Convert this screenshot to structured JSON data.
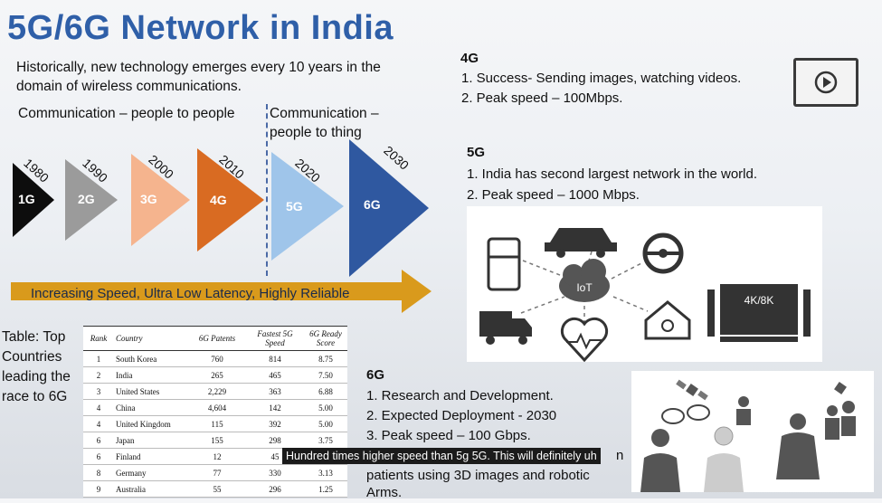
{
  "title": "5G/6G Network in India",
  "intro": "Historically, new technology emerges every 10 years in the domain of wireless communications.",
  "comm_people": "Communication – people to people",
  "comm_thing": "Communication – people to thing",
  "generations": [
    {
      "label": "1G",
      "year": "1980",
      "color": "#0d0d0d"
    },
    {
      "label": "2G",
      "year": "1990",
      "color": "#9b9b9b"
    },
    {
      "label": "3G",
      "year": "2000",
      "color": "#f5b48e"
    },
    {
      "label": "4G",
      "year": "2010",
      "color": "#d96b22"
    },
    {
      "label": "5G",
      "year": "2020",
      "color": "#9fc5ea"
    },
    {
      "label": "6G",
      "year": "2030",
      "color": "#2f58a0"
    }
  ],
  "arrow_text": "Increasing Speed, Ultra Low Latency, Highly Reliable",
  "table_caption": "Table: Top Countries leading the race to 6G",
  "table": {
    "headers": [
      "Rank",
      "Country",
      "6G Patents",
      "Fastest 5G Speed",
      "6G Ready Score"
    ],
    "rows": [
      [
        "1",
        "South Korea",
        "760",
        "814",
        "8.75"
      ],
      [
        "2",
        "India",
        "265",
        "465",
        "7.50"
      ],
      [
        "3",
        "United States",
        "2,229",
        "363",
        "6.88"
      ],
      [
        "4",
        "China",
        "4,604",
        "142",
        "5.00"
      ],
      [
        "4",
        "United Kingdom",
        "115",
        "392",
        "5.00"
      ],
      [
        "6",
        "Japan",
        "155",
        "298",
        "3.75"
      ],
      [
        "6",
        "Finland",
        "12",
        "45",
        ""
      ],
      [
        "8",
        "Germany",
        "77",
        "330",
        "3.13"
      ],
      [
        "9",
        "Australia",
        "55",
        "296",
        "1.25"
      ]
    ]
  },
  "s4g": {
    "heading": "4G",
    "items": [
      "1.   Success- Sending images, watching videos.",
      "2. Peak speed – 100Mbps."
    ]
  },
  "s5g": {
    "heading": "5G",
    "items": [
      "1. India has second largest network in the world.",
      "2. Peak speed – 1000 Mbps."
    ]
  },
  "s6g": {
    "heading": "6G",
    "items": [
      "1.   Research and Development.",
      "2.   Expected Deployment - 2030",
      "3. Peak speed – 100 Gbps.",
      "n",
      "patients using 3D images and robotic",
      "Arms."
    ]
  },
  "iot_label": "IoT",
  "tv_label": "4K/8K",
  "caption": "Hundred times higher speed than 5g 5G. This will definitely uh",
  "icons": [
    "play-icon",
    "fridge-icon",
    "car-icon",
    "steering-wheel-icon",
    "cloud-icon",
    "truck-icon",
    "heart-icon",
    "home-power-icon",
    "tv-icon",
    "satellite-icon",
    "person-icon",
    "robot-icon"
  ]
}
